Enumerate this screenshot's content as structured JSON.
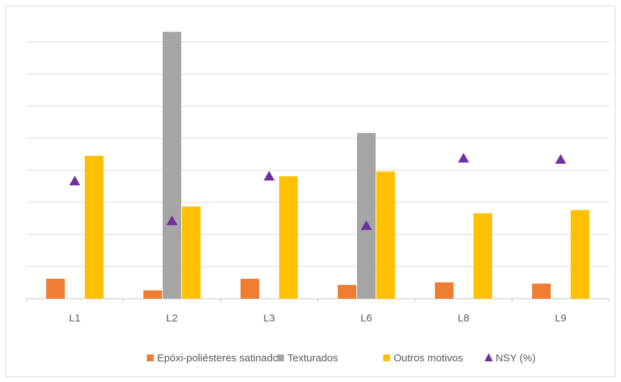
{
  "chart_data": {
    "type": "bar",
    "categories": [
      "L1",
      "L2",
      "L3",
      "L6",
      "L8",
      "L9"
    ],
    "series": [
      {
        "name": "Epóxi-poliésteres satinados",
        "type": "bar",
        "color": "#ed7d31",
        "values": [
          0.62,
          0.26,
          0.62,
          0.43,
          0.51,
          0.47
        ]
      },
      {
        "name": "Texturados",
        "type": "bar",
        "color": "#a5a5a5",
        "values": [
          null,
          8.31,
          null,
          5.16,
          null,
          null
        ]
      },
      {
        "name": "Outros motivos",
        "type": "bar",
        "color": "#ffc000",
        "values": [
          4.45,
          2.87,
          3.81,
          3.96,
          2.66,
          2.76
        ]
      },
      {
        "name": "NSY (%)",
        "type": "scatter",
        "marker": "triangle",
        "color": "#7030a0",
        "values": [
          3.66,
          2.42,
          3.81,
          2.27,
          4.37,
          4.33
        ]
      }
    ],
    "ylim": [
      0,
      9
    ],
    "yticks": [
      0,
      1,
      2,
      3,
      4,
      5,
      6,
      7,
      8
    ],
    "grid": true,
    "legend": "bottom"
  }
}
